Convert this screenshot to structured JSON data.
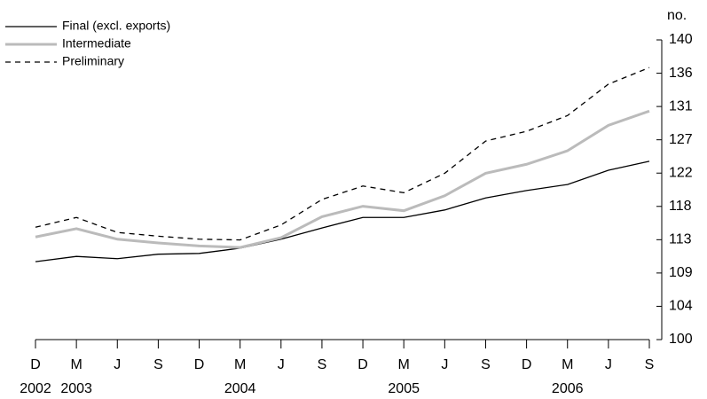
{
  "chart_data": {
    "type": "line",
    "y_unit_label": "no.",
    "categories": [
      "D",
      "M",
      "J",
      "S",
      "D",
      "M",
      "J",
      "S",
      "D",
      "M",
      "J",
      "S",
      "D",
      "M",
      "J",
      "S"
    ],
    "category_years": [
      "2002",
      "2003",
      null,
      null,
      null,
      "2004",
      null,
      null,
      null,
      "2005",
      null,
      null,
      null,
      "2006",
      null,
      null
    ],
    "series": [
      {
        "name": "Final (excl. exports)",
        "color": "#000000",
        "width": 1.3,
        "dash": false,
        "values": [
          110.4,
          111.1,
          110.8,
          111.4,
          111.5,
          112.2,
          113.4,
          114.9,
          116.3,
          116.3,
          117.3,
          118.9,
          119.9,
          120.7,
          122.6,
          123.8
        ]
      },
      {
        "name": "Intermediate",
        "color": "#bbbbbb",
        "width": 3,
        "dash": false,
        "values": [
          113.7,
          114.8,
          113.4,
          112.9,
          112.5,
          112.3,
          113.6,
          116.4,
          117.8,
          117.2,
          119.2,
          122.2,
          123.4,
          125.2,
          128.6,
          130.5
        ]
      },
      {
        "name": "Preliminary",
        "color": "#000000",
        "width": 1.3,
        "dash": true,
        "values": [
          115.0,
          116.3,
          114.3,
          113.8,
          113.4,
          113.3,
          115.3,
          118.7,
          120.5,
          119.6,
          122.2,
          126.5,
          127.8,
          129.9,
          134.1,
          136.3
        ]
      }
    ],
    "ylim": [
      100,
      140
    ],
    "yticks": [
      100,
      {
        "value": 104.444,
        "label": "104"
      },
      {
        "value": 108.889,
        "label": "109"
      },
      {
        "value": 113.333,
        "label": "113"
      },
      {
        "value": 117.778,
        "label": "118"
      },
      {
        "value": 122.222,
        "label": "122"
      },
      {
        "value": 126.667,
        "label": "127"
      },
      {
        "value": 131.111,
        "label": "131"
      },
      {
        "value": 135.556,
        "label": "136"
      },
      140
    ],
    "legend": "top-left",
    "grid": false
  }
}
